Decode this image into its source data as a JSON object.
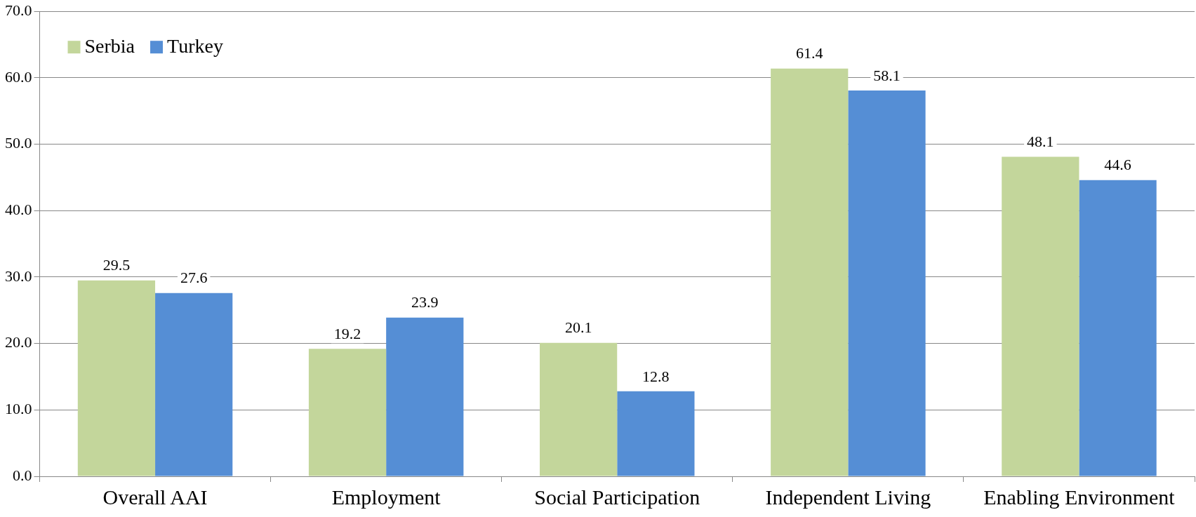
{
  "chart_data": {
    "type": "bar",
    "categories": [
      "Overall AAI",
      "Employment",
      "Social Participation",
      "Independent Living",
      "Enabling Environment"
    ],
    "series": [
      {
        "name": "Serbia",
        "color": "#c3d69b",
        "values": [
          29.5,
          19.2,
          20.1,
          61.4,
          48.1
        ]
      },
      {
        "name": "Turkey",
        "color": "#558ed5",
        "values": [
          27.6,
          23.9,
          12.8,
          58.1,
          44.6
        ]
      }
    ],
    "ylim": [
      0,
      70
    ],
    "yticks": [
      {
        "value": 0,
        "label": "0.0"
      },
      {
        "value": 10,
        "label": "10.0"
      },
      {
        "value": 20,
        "label": "20.0"
      },
      {
        "value": 30,
        "label": "30.0"
      },
      {
        "value": 40,
        "label": "40.0"
      },
      {
        "value": 50,
        "label": "50.0"
      },
      {
        "value": 60,
        "label": "60.0"
      },
      {
        "value": 70,
        "label": "70.0"
      }
    ],
    "grid": "y",
    "legend": "top left",
    "data_labels": true
  }
}
